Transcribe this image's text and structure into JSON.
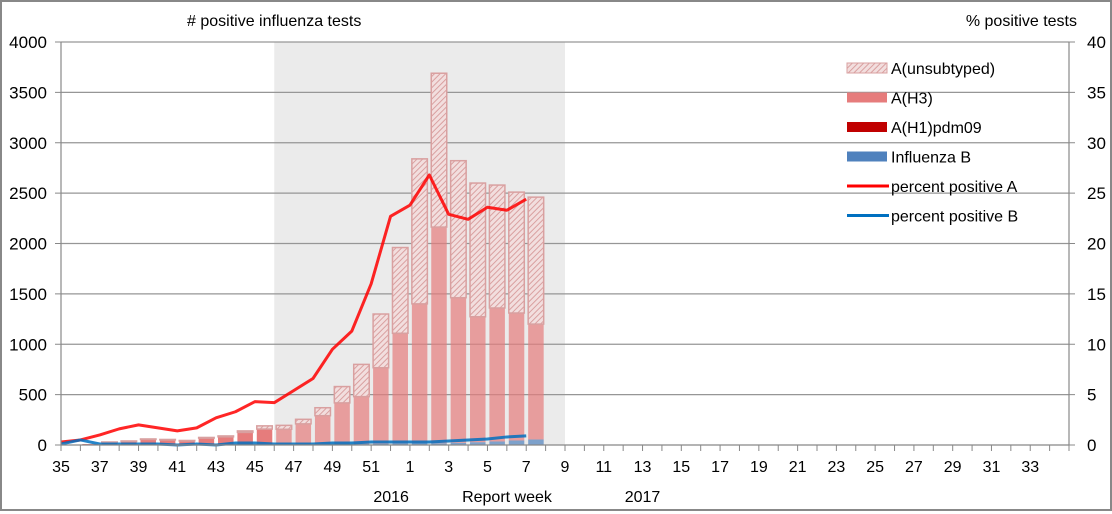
{
  "chart": {
    "left_axis_title": "# positive influenza tests",
    "right_axis_title": "% positive tests",
    "x_axis_title": "Report week",
    "year_labels": [
      {
        "label": "2016",
        "week": 51
      },
      {
        "label": "2017",
        "week": 13
      }
    ]
  },
  "chart_data": {
    "type": "bar",
    "title": "",
    "xlabel": "Report week",
    "ylabel": "# positive influenza tests",
    "y2label": "% positive tests",
    "ylim": [
      0,
      4000
    ],
    "y2lim": [
      0,
      40
    ],
    "yticks": [
      0,
      500,
      1000,
      1500,
      2000,
      2500,
      3000,
      3500,
      4000
    ],
    "y2ticks": [
      0,
      5,
      10,
      15,
      20,
      25,
      30,
      35,
      40
    ],
    "grid": true,
    "legend_position": "upper right",
    "shaded_region": {
      "from_week": 46,
      "to_week": 9,
      "color": "#ebebeb"
    },
    "categories": [
      "35",
      "36",
      "37",
      "38",
      "39",
      "40",
      "41",
      "42",
      "43",
      "44",
      "45",
      "46",
      "47",
      "48",
      "49",
      "50",
      "51",
      "52",
      "1",
      "2",
      "3",
      "4",
      "5",
      "6",
      "7",
      "8",
      "9",
      "10",
      "11",
      "12",
      "13",
      "14",
      "15",
      "16",
      "17",
      "18",
      "19",
      "20",
      "21",
      "22",
      "23",
      "24",
      "25",
      "26",
      "27",
      "28",
      "29",
      "30",
      "31",
      "32",
      "33",
      "34"
    ],
    "tick_labels": [
      "35",
      "37",
      "39",
      "41",
      "43",
      "45",
      "47",
      "49",
      "51",
      "1",
      "3",
      "5",
      "7",
      "9",
      "11",
      "13",
      "15",
      "17",
      "19",
      "21",
      "23",
      "25",
      "27",
      "29",
      "31",
      "33"
    ],
    "series": [
      {
        "name": "Influenza B",
        "kind": "bar",
        "color": "#4f81bd",
        "values": [
          2,
          5,
          2,
          3,
          3,
          3,
          1,
          3,
          1,
          5,
          8,
          6,
          5,
          6,
          8,
          10,
          12,
          14,
          16,
          18,
          22,
          28,
          35,
          45,
          55
        ]
      },
      {
        "name": "A(H1)pdm09",
        "kind": "bar",
        "color": "#c00000",
        "values": [
          0,
          0,
          0,
          0,
          0,
          0,
          0,
          0,
          0,
          0,
          0,
          0,
          0,
          0,
          0,
          0,
          0,
          0,
          0,
          0,
          0,
          0,
          0,
          0,
          0
        ]
      },
      {
        "name": "A(H3)",
        "kind": "bar",
        "color": "#e67c7c",
        "values": [
          3,
          5,
          25,
          35,
          55,
          50,
          40,
          65,
          80,
          120,
          150,
          150,
          205,
          285,
          410,
          470,
          755,
          1095,
          1385,
          2145,
          1440,
          1245,
          1325,
          1265,
          1145
        ]
      },
      {
        "name": "A(unsubtyped)",
        "kind": "bar",
        "color": "#d9a0a0",
        "pattern": "hatched",
        "values": [
          0,
          0,
          3,
          2,
          2,
          2,
          4,
          7,
          9,
          15,
          32,
          39,
          45,
          79,
          162,
          320,
          533,
          851,
          1439,
          1527,
          1360,
          1327,
          1220,
          1200,
          1260
        ]
      },
      {
        "name": "percent positive A",
        "kind": "line",
        "axis": "right",
        "color": "#ff0000",
        "values": [
          0.3,
          0.5,
          1.0,
          1.6,
          2.0,
          1.7,
          1.4,
          1.7,
          2.7,
          3.3,
          4.3,
          4.2,
          5.4,
          6.6,
          9.5,
          11.3,
          16.0,
          22.7,
          23.8,
          26.8,
          22.9,
          22.4,
          23.6,
          23.3,
          24.4
        ]
      },
      {
        "name": "percent positive B",
        "kind": "line",
        "axis": "right",
        "color": "#0070c0",
        "values": [
          0.1,
          0.5,
          0.1,
          0.1,
          0.1,
          0.1,
          0.0,
          0.1,
          0.0,
          0.2,
          0.2,
          0.1,
          0.1,
          0.1,
          0.2,
          0.2,
          0.3,
          0.3,
          0.3,
          0.3,
          0.4,
          0.5,
          0.6,
          0.8,
          0.9
        ]
      }
    ]
  },
  "legend": [
    {
      "label": "A(unsubtyped)",
      "type": "hatch",
      "color": "#d9a0a0"
    },
    {
      "label": "A(H3)",
      "type": "box",
      "color": "#e67c7c"
    },
    {
      "label": "A(H1)pdm09",
      "type": "box",
      "color": "#c00000"
    },
    {
      "label": "Influenza B",
      "type": "box",
      "color": "#4f81bd"
    },
    {
      "label": "percent positive A",
      "type": "line",
      "color": "#ff0000"
    },
    {
      "label": "percent positive B",
      "type": "line",
      "color": "#0070c0"
    }
  ]
}
